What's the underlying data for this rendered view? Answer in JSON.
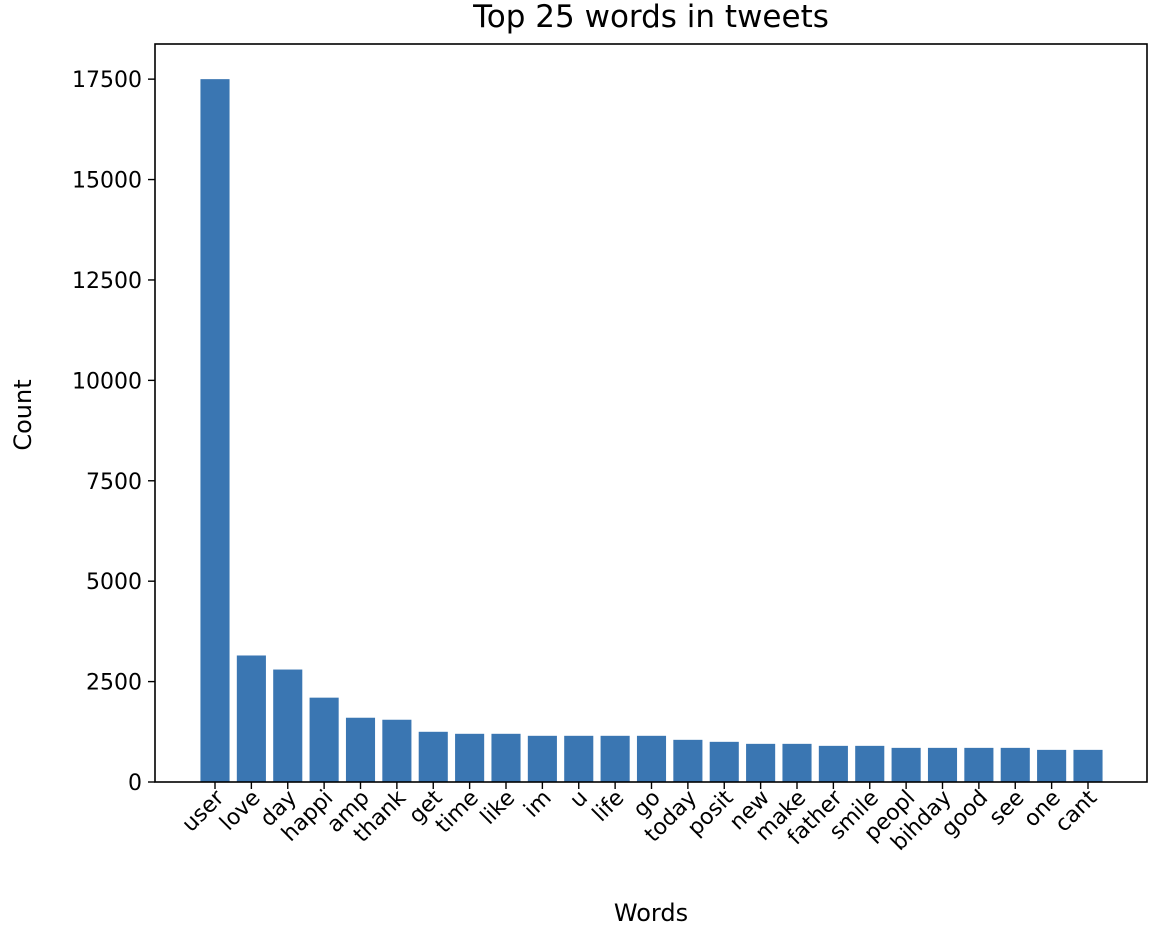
{
  "chart_data": {
    "type": "bar",
    "title": "Top 25 words in tweets",
    "xlabel": "Words",
    "ylabel": "Count",
    "categories": [
      "user",
      "love",
      "day",
      "happi",
      "amp",
      "thank",
      "get",
      "time",
      "like",
      "im",
      "u",
      "life",
      "go",
      "today",
      "posit",
      "new",
      "make",
      "father",
      "smile",
      "peopl",
      "bihday",
      "good",
      "see",
      "one",
      "cant"
    ],
    "values": [
      17500,
      3150,
      2800,
      2100,
      1600,
      1550,
      1250,
      1200,
      1200,
      1150,
      1150,
      1150,
      1150,
      1050,
      1000,
      950,
      950,
      900,
      900,
      850,
      850,
      850,
      850,
      800,
      800
    ],
    "ylim": [
      0,
      18375
    ],
    "yticks": [
      0,
      2500,
      5000,
      7500,
      10000,
      12500,
      15000,
      17500
    ],
    "bar_color": "#3a76b2",
    "grid": false,
    "legend": "none"
  }
}
